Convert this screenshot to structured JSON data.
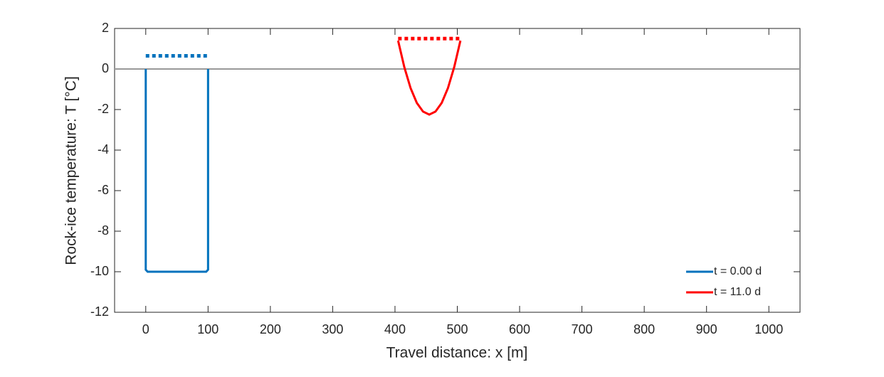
{
  "chart_data": {
    "type": "line",
    "xlabel": "Travel distance: x [m]",
    "ylabel": "Rock-ice temperature:  T [°C]",
    "xlim": [
      -50,
      1050
    ],
    "xticks": [
      0,
      100,
      200,
      300,
      400,
      500,
      600,
      700,
      800,
      900,
      1000
    ],
    "ylim": [
      -12,
      2
    ],
    "yticks": [
      -12,
      -10,
      -8,
      -6,
      -4,
      -2,
      0,
      2
    ],
    "legend": "lower right",
    "reference_line": {
      "value": 0,
      "color": "#999999"
    },
    "series": [
      {
        "name": "t = 0.00 d",
        "color": "#0072bd",
        "x": [
          0,
          0,
          3,
          50,
          97,
          100,
          100
        ],
        "values": [
          0,
          -9.9,
          -10,
          -10,
          -10,
          -9.9,
          0
        ]
      },
      {
        "name": "t = 11.0 d",
        "color": "#ff0000",
        "x": [
          405,
          415,
          425,
          435,
          445,
          455,
          465,
          475,
          485,
          495,
          505
        ],
        "values": [
          1.4,
          0.09,
          -0.94,
          -1.67,
          -2.1,
          -2.25,
          -2.1,
          -1.67,
          -0.94,
          0.09,
          1.4
        ]
      }
    ],
    "dotted_lines": [
      {
        "color": "#0072bd",
        "x": [
          0,
          100
        ],
        "values": [
          0.65,
          0.65
        ]
      },
      {
        "color": "#ff0000",
        "x": [
          405,
          505
        ],
        "values": [
          1.5,
          1.5
        ]
      }
    ]
  }
}
